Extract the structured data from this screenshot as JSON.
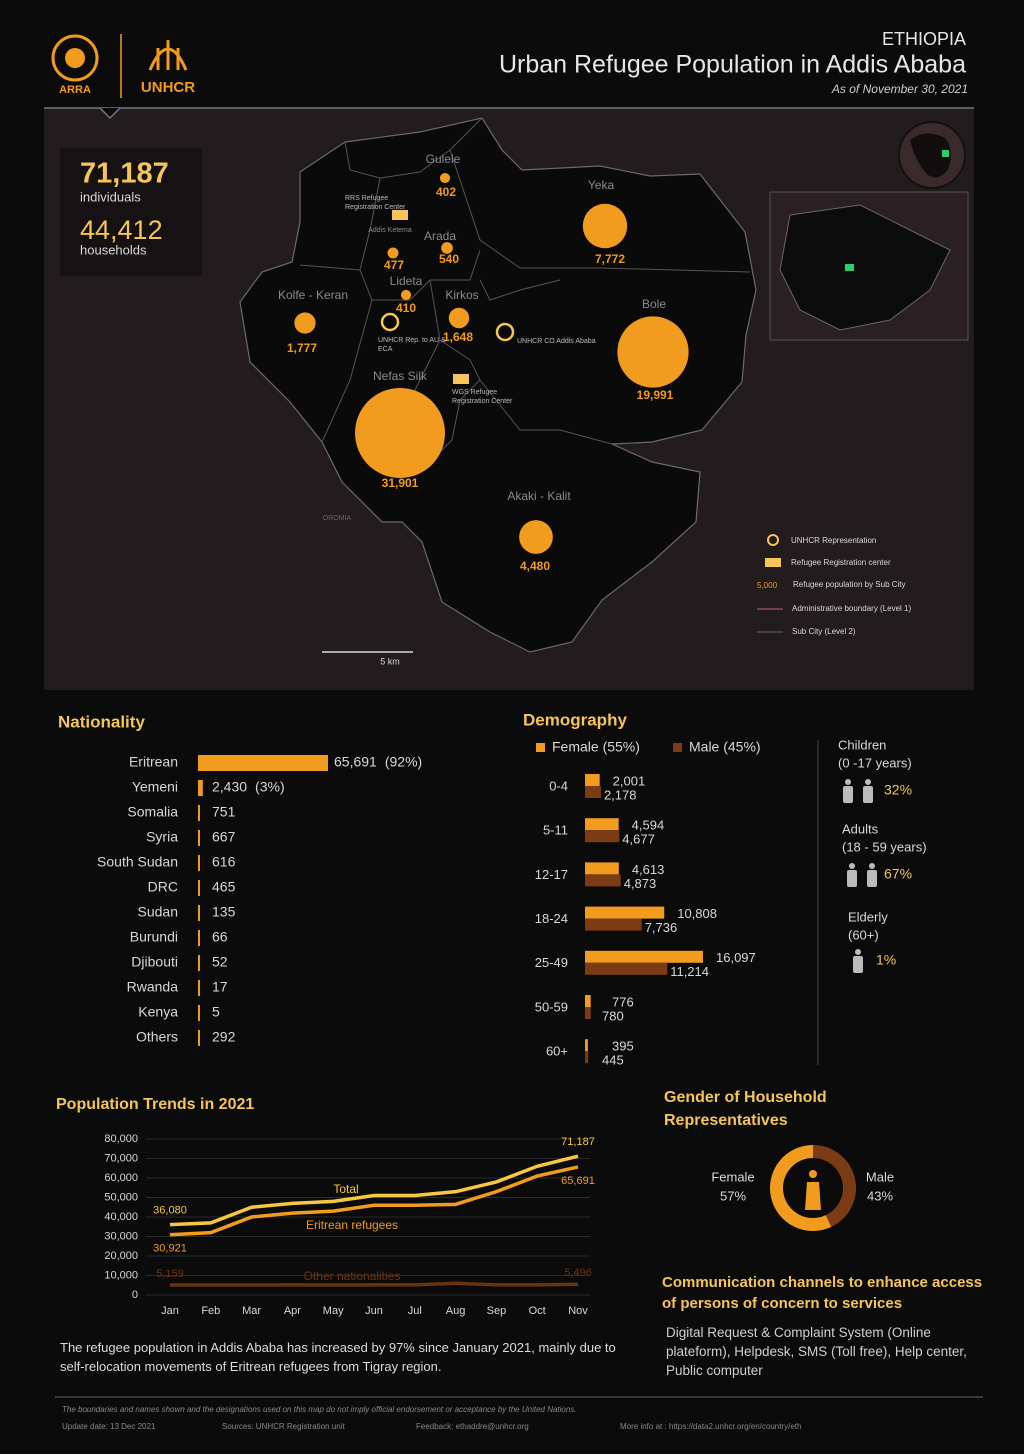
{
  "header": {
    "logo_left": "ARRA",
    "logo_right": "UNHCR",
    "country": "ETHIOPIA",
    "title": "Urban Refugee Population in Addis Ababa",
    "date": "As of November 30, 2021"
  },
  "summary": {
    "individuals": "71,187",
    "individuals_label": "individuals",
    "households": "44,412",
    "households_label": "households"
  },
  "map": {
    "subcities": [
      {
        "name": "Gulele",
        "value": 402
      },
      {
        "name": "Yeka",
        "value": 7772,
        "label": "7,772"
      },
      {
        "name": "Arada",
        "value": 540
      },
      {
        "name": "Addis Ketema",
        "value": 477
      },
      {
        "name": "Lideta",
        "value": 410
      },
      {
        "name": "Kirkos",
        "value": 1648,
        "label": "1,648"
      },
      {
        "name": "Kolfe - Keran",
        "value": 1777,
        "label": "1,777"
      },
      {
        "name": "Bole",
        "value": 19991,
        "label": "19,991"
      },
      {
        "name": "Nefas Silk",
        "value": 31901,
        "label": "31,901"
      },
      {
        "name": "Akaki - Kalit",
        "value": 4480,
        "label": "4,480"
      }
    ],
    "facilities": [
      {
        "type": "registration",
        "label": "RRS Refugee Registration Center"
      },
      {
        "type": "representation",
        "label": "UNHCR Rep. to AU & ECA"
      },
      {
        "type": "representation",
        "label": "UNHCR CO Addis Ababa"
      },
      {
        "type": "registration",
        "label": "WGS Refugee Registration Center"
      }
    ],
    "region_label": "OROMIA",
    "scale": "5 km",
    "legend": {
      "representation": "UNHCR Representation",
      "registration": "Refugee Registration center",
      "sample": "5,000",
      "population": "Refugee population by Sub City",
      "admin1": "Administrative boundary (Level 1)",
      "admin2": "Sub City (Level 2)"
    }
  },
  "chart_data": [
    {
      "type": "hbar",
      "title": "Nationality",
      "color": "#f29c1f",
      "categories": [
        "Eritrean",
        "Yemeni",
        "Somalia",
        "Syria",
        "South Sudan",
        "DRC",
        "Sudan",
        "Burundi",
        "Djibouti",
        "Rwanda",
        "Kenya",
        "Others"
      ],
      "values": [
        65691,
        2430,
        751,
        667,
        616,
        465,
        135,
        66,
        52,
        17,
        5,
        292
      ],
      "value_labels": [
        "65,691",
        "2,430",
        "751",
        "667",
        "616",
        "465",
        "135",
        "66",
        "52",
        "17",
        "5",
        "292"
      ],
      "annotations": [
        {
          "category": "Eritrean",
          "text": "(92%)"
        },
        {
          "category": "Yemeni",
          "text": "(3%)"
        }
      ]
    },
    {
      "type": "grouped-hbar",
      "title": "Demography",
      "categories": [
        "0-4",
        "5-11",
        "12-17",
        "18-24",
        "25-49",
        "50-59",
        "60+"
      ],
      "series": [
        {
          "name": "Female (55%)",
          "color": "#f29c1f",
          "values": [
            2001,
            4594,
            4613,
            10808,
            16097,
            776,
            395
          ],
          "value_labels": [
            "2,001",
            "4,594",
            "4,613",
            "10,808",
            "16,097",
            "776",
            "395"
          ]
        },
        {
          "name": "Male (45%)",
          "color": "#7a3b15",
          "values": [
            2178,
            4677,
            4873,
            7736,
            11214,
            780,
            445
          ],
          "value_labels": [
            "2,178",
            "4,677",
            "4,873",
            "7,736",
            "11,214",
            "780",
            "445"
          ]
        }
      ]
    },
    {
      "type": "line",
      "title": "Population Trends in 2021",
      "categories": [
        "Jan",
        "Feb",
        "Mar",
        "Apr",
        "May",
        "Jun",
        "Jul",
        "Aug",
        "Sep",
        "Oct",
        "Nov"
      ],
      "ylim": [
        0,
        80000
      ],
      "yticks": [
        0,
        {
          "value": 10000,
          "label": "10,000"
        },
        {
          "value": 20000,
          "label": "20,000"
        },
        {
          "value": 30000,
          "label": "30,000"
        },
        {
          "value": 40000,
          "label": "40,000"
        },
        {
          "value": 50000,
          "label": "50,000"
        },
        {
          "value": 60000,
          "label": "60,000"
        },
        {
          "value": 70000,
          "label": "70,000"
        },
        {
          "value": 80000,
          "label": "80,000"
        }
      ],
      "grid": true,
      "series": [
        {
          "name": "Total",
          "color": "#f6c842",
          "values": [
            36080,
            37000,
            45000,
            47000,
            48000,
            51000,
            51000,
            53000,
            58000,
            66000,
            71187
          ],
          "value_labels": [
            "36,080",
            null,
            null,
            null,
            null,
            null,
            null,
            null,
            null,
            null,
            "71,187"
          ]
        },
        {
          "name": "Eritrean refugees",
          "color": "#f29c1f",
          "values": [
            30921,
            32000,
            40000,
            42000,
            43000,
            46000,
            46000,
            46500,
            53000,
            61000,
            65691
          ],
          "value_labels": [
            "30,921",
            null,
            null,
            null,
            null,
            null,
            null,
            null,
            null,
            null,
            "65,691"
          ]
        },
        {
          "name": "Other nationalities",
          "color": "#6b3410",
          "values": [
            5159,
            5100,
            5100,
            5200,
            5100,
            5200,
            5200,
            6000,
            5200,
            5200,
            5496
          ],
          "value_labels": [
            "5,159",
            null,
            null,
            null,
            null,
            null,
            null,
            null,
            null,
            null,
            "5,496"
          ]
        }
      ]
    },
    {
      "type": "donut",
      "title": "Gender of Household Representatives",
      "categories": [
        "Female",
        "Male"
      ],
      "values": [
        57,
        43
      ],
      "value_labels": [
        "57%",
        "43%"
      ],
      "colors": [
        "#f29c1f",
        "#7a3b15"
      ]
    }
  ],
  "demography_groups": [
    {
      "name": "Children",
      "range": "(0 -17 years)",
      "share": "32%"
    },
    {
      "name": "Adults",
      "range": "(18 - 59 years)",
      "share": "67%"
    },
    {
      "name": "Elderly",
      "range": "(60+)",
      "share": "1%"
    }
  ],
  "note": "The refugee population in Addis Ababa has increased by 97% since January 2021, mainly due to self-relocation movements of Eritrean refugees from Tigray region.",
  "communication": {
    "title": "Communication channels to enhance access of persons of concern to services",
    "body": "Digital Request & Complaint System (Online plateform), Helpdesk, SMS (Toll free), Help center, Public computer"
  },
  "footer": {
    "disclaimer": "The boundaries and names shown and the designations used on this map do not imply official endorsement or acceptance by the United Nations.",
    "update": "Update date: 13 Dec 2021",
    "sources": "Sources: UNHCR Registration unit",
    "feedback": "Feedback: ethaddre@unhcr.org",
    "more_info": "More info at : https://data2.unhcr.org/en/country/eth"
  }
}
